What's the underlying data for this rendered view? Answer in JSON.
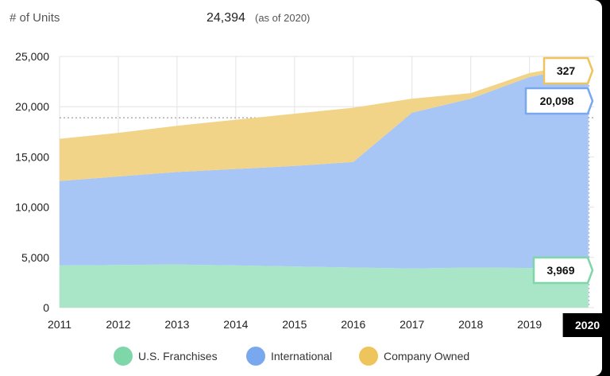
{
  "header": {
    "unit_label": "# of Units",
    "total": "24,394",
    "as_of": "(as of 2020)"
  },
  "colors": {
    "us_franchises": "#a8e6c7",
    "international": "#a7c5f5",
    "company_owned": "#f2d488",
    "legend_green": "#7fd6a8",
    "legend_blue": "#7aa8ef",
    "legend_yellow": "#efc45c"
  },
  "chart_data": {
    "type": "area",
    "stacked": true,
    "x": [
      2011,
      2012,
      2013,
      2014,
      2015,
      2016,
      2017,
      2018,
      2019,
      2020
    ],
    "xlim": [
      2011,
      2020.1
    ],
    "ylim": [
      0,
      25000
    ],
    "y_ticks": [
      0,
      5000,
      10000,
      15000,
      20000,
      25000
    ],
    "y_tick_labels": [
      "0",
      "5,000",
      "10,000",
      "15,000",
      "20,000",
      "25,000"
    ],
    "x_tick_labels": [
      "2011",
      "2012",
      "2013",
      "2014",
      "2015",
      "2016",
      "2017",
      "2018",
      "2019",
      "2020",
      "20"
    ],
    "grid": true,
    "reference_line": 18900,
    "series": [
      {
        "name": "U.S. Franchises",
        "values": [
          4200,
          4250,
          4300,
          4200,
          4100,
          4000,
          3900,
          4000,
          3950,
          3969
        ]
      },
      {
        "name": "International",
        "values": [
          8400,
          8800,
          9200,
          9600,
          10000,
          10500,
          15500,
          16800,
          19000,
          20098
        ]
      },
      {
        "name": "Company Owned",
        "values": [
          4200,
          4350,
          4600,
          4900,
          5200,
          5400,
          1400,
          550,
          400,
          327
        ]
      }
    ],
    "callouts": {
      "company_owned": "327",
      "international": "20,098",
      "us_franchises": "3,969",
      "year": "2020"
    },
    "legend_position": "bottom"
  }
}
